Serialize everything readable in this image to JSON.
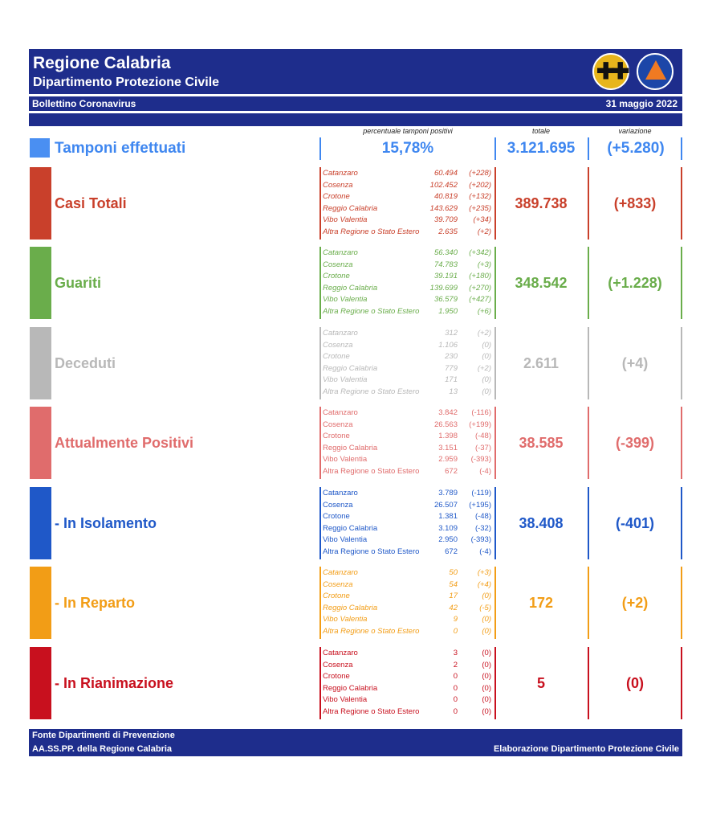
{
  "header": {
    "title": "Regione Calabria",
    "subtitle": "Dipartimento Protezione Civile",
    "bulletin": "Bollettino Coronavirus",
    "date": "31 maggio 2022"
  },
  "columns": {
    "percent_label": "percentuale tamponi positivi",
    "total_label": "totale",
    "variation_label": "variazione"
  },
  "tamponi": {
    "label": "Tamponi effettuati",
    "percent": "15,78%",
    "total": "3.121.695",
    "variation": "(+5.280)",
    "color": "#3f87f0"
  },
  "sections": [
    {
      "label": "Casi Totali",
      "total": "389.738",
      "variation": "(+833)",
      "color": "#c9402b",
      "rows": [
        {
          "name": "Catanzaro",
          "value": "60.494",
          "delta": "(+228)"
        },
        {
          "name": "Cosenza",
          "value": "102.452",
          "delta": "(+202)"
        },
        {
          "name": "Crotone",
          "value": "40.819",
          "delta": "(+132)"
        },
        {
          "name": "Reggio Calabria",
          "value": "143.629",
          "delta": "(+235)"
        },
        {
          "name": "Vibo Valentia",
          "value": "39.709",
          "delta": "(+34)"
        },
        {
          "name": "Altra Regione o Stato Estero",
          "value": "2.635",
          "delta": "(+2)"
        }
      ]
    },
    {
      "label": "Guariti",
      "total": "348.542",
      "variation": "(+1.228)",
      "color": "#6aad4b",
      "rows": [
        {
          "name": "Catanzaro",
          "value": "56.340",
          "delta": "(+342)"
        },
        {
          "name": "Cosenza",
          "value": "74.783",
          "delta": "(+3)"
        },
        {
          "name": "Crotone",
          "value": "39.191",
          "delta": "(+180)"
        },
        {
          "name": "Reggio Calabria",
          "value": "139.699",
          "delta": "(+270)"
        },
        {
          "name": "Vibo Valentia",
          "value": "36.579",
          "delta": "(+427)"
        },
        {
          "name": "Altra Regione o Stato Estero",
          "value": "1.950",
          "delta": "(+6)"
        }
      ]
    },
    {
      "label": "Deceduti",
      "total": "2.611",
      "variation": "(+4)",
      "color": "#b8b8b8",
      "rows": [
        {
          "name": "Catanzaro",
          "value": "312",
          "delta": "(+2)"
        },
        {
          "name": "Cosenza",
          "value": "1.106",
          "delta": "(0)"
        },
        {
          "name": "Crotone",
          "value": "230",
          "delta": "(0)"
        },
        {
          "name": "Reggio Calabria",
          "value": "779",
          "delta": "(+2)"
        },
        {
          "name": "Vibo Valentia",
          "value": "171",
          "delta": "(0)"
        },
        {
          "name": "Altra Regione o Stato Estero",
          "value": "13",
          "delta": "(0)"
        }
      ]
    },
    {
      "label": "Attualmente Positivi",
      "total": "38.585",
      "variation": "(-399)",
      "color": "#e06c6c",
      "rows": [
        {
          "name": "Catanzaro",
          "value": "3.842",
          "delta": "(-116)"
        },
        {
          "name": "Cosenza",
          "value": "26.563",
          "delta": "(+199)"
        },
        {
          "name": "Crotone",
          "value": "1.398",
          "delta": "(-48)"
        },
        {
          "name": "Reggio Calabria",
          "value": "3.151",
          "delta": "(-37)"
        },
        {
          "name": "Vibo Valentia",
          "value": "2.959",
          "delta": "(-393)"
        },
        {
          "name": "Altra Regione o Stato Estero",
          "value": "672",
          "delta": "(-4)"
        }
      ]
    },
    {
      "label": "- In Isolamento",
      "total": "38.408",
      "variation": "(-401)",
      "color": "#1f58c8",
      "rows": [
        {
          "name": "Catanzaro",
          "value": "3.789",
          "delta": "(-119)"
        },
        {
          "name": "Cosenza",
          "value": "26.507",
          "delta": "(+195)"
        },
        {
          "name": "Crotone",
          "value": "1.381",
          "delta": "(-48)"
        },
        {
          "name": "Reggio Calabria",
          "value": "3.109",
          "delta": "(-32)"
        },
        {
          "name": "Vibo Valentia",
          "value": "2.950",
          "delta": "(-393)"
        },
        {
          "name": "Altra Regione o Stato Estero",
          "value": "672",
          "delta": "(-4)"
        }
      ]
    },
    {
      "label": "- In Reparto",
      "total": "172",
      "variation": "(+2)",
      "color": "#f29d16",
      "rows": [
        {
          "name": "Catanzaro",
          "value": "50",
          "delta": "(+3)"
        },
        {
          "name": "Cosenza",
          "value": "54",
          "delta": "(+4)"
        },
        {
          "name": "Crotone",
          "value": "17",
          "delta": "(0)"
        },
        {
          "name": "Reggio Calabria",
          "value": "42",
          "delta": "(-5)"
        },
        {
          "name": "Vibo Valentia",
          "value": "9",
          "delta": "(0)"
        },
        {
          "name": "Altra Regione o Stato Estero",
          "value": "0",
          "delta": "(0)"
        }
      ]
    },
    {
      "label": "- In Rianimazione",
      "total": "5",
      "variation": "(0)",
      "color": "#c8101e",
      "rows": [
        {
          "name": "Catanzaro",
          "value": "3",
          "delta": "(0)"
        },
        {
          "name": "Cosenza",
          "value": "2",
          "delta": "(0)"
        },
        {
          "name": "Crotone",
          "value": "0",
          "delta": "(0)"
        },
        {
          "name": "Reggio Calabria",
          "value": "0",
          "delta": "(0)"
        },
        {
          "name": "Vibo Valentia",
          "value": "0",
          "delta": "(0)"
        },
        {
          "name": "Altra Regione o Stato Estero",
          "value": "0",
          "delta": "(0)"
        }
      ]
    }
  ],
  "footer": {
    "source_line1": "Fonte Dipartimenti di Prevenzione",
    "source_line2": "AA.SS.PP.  della Regione Calabria",
    "credit": "Elaborazione Dipartimento Protezione Civile"
  }
}
